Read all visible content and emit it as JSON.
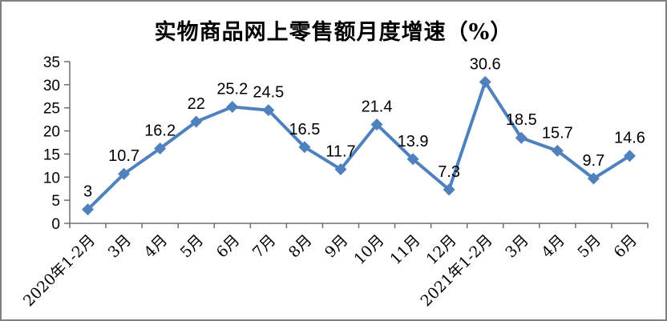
{
  "chart_data": {
    "type": "line",
    "title": "实物商品网上零售额月度增速（%）",
    "categories": [
      "2020年1-2月",
      "3月",
      "4月",
      "5月",
      "6月",
      "7月",
      "8月",
      "9月",
      "10月",
      "11月",
      "12月",
      "2021年1-2月",
      "3月",
      "4月",
      "5月",
      "6月"
    ],
    "series": [
      {
        "name": "实物商品网上零售额月度增速",
        "values": [
          3,
          10.7,
          16.2,
          22,
          25.2,
          24.5,
          16.5,
          11.7,
          21.4,
          13.9,
          7.3,
          30.6,
          18.5,
          15.7,
          9.7,
          14.6
        ]
      }
    ],
    "data_labels": [
      3,
      10.7,
      16.2,
      22,
      25.2,
      24.5,
      16.5,
      11.7,
      21.4,
      13.9,
      7.3,
      30.6,
      18.5,
      15.7,
      9.7,
      14.6
    ],
    "xlabel": "",
    "ylabel": "",
    "ylim": [
      0,
      35
    ],
    "ytick_step": 5,
    "yticks": [
      0,
      5,
      10,
      15,
      20,
      25,
      30,
      35
    ],
    "grid": false,
    "legend_position": "none",
    "marker": "diamond",
    "x_label_rotation_deg": 45,
    "colors": {
      "line": "#4F81BD",
      "marker": "#4F81BD",
      "axis": "#6e6e6e",
      "text": "#000000",
      "frame_border": "#808080",
      "background": "#ffffff"
    }
  }
}
